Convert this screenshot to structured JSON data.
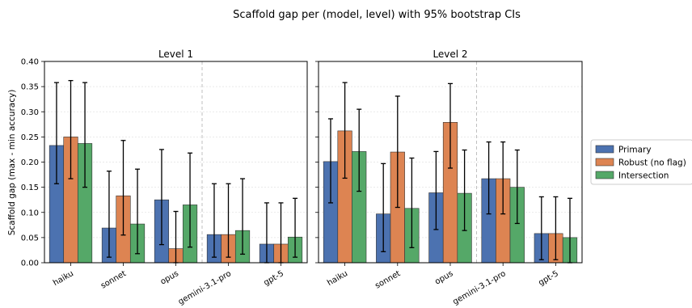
{
  "figure": {
    "suptitle": "Scaffold gap per (model, level) with 95% bootstrap CIs",
    "ylabel": "Scaffold gap (max - min accuracy)"
  },
  "legend": {
    "placement": "right",
    "items": [
      {
        "label": "Primary",
        "color": "#4c72b0"
      },
      {
        "label": "Robust (no flag)",
        "color": "#dd8452"
      },
      {
        "label": "Intersection",
        "color": "#55a868"
      }
    ]
  },
  "chart_data": [
    {
      "type": "bar",
      "title": "Level 1",
      "categories": [
        "haiku",
        "sonnet",
        "opus",
        "gemini-3.1-pro",
        "gpt-5"
      ],
      "ylim": [
        0,
        0.4
      ],
      "yticks": [
        "0.00",
        "0.05",
        "0.10",
        "0.15",
        "0.20",
        "0.25",
        "0.30",
        "0.35",
        "0.40"
      ],
      "grid": "y",
      "divider_after_category": 2,
      "series": [
        {
          "name": "Primary",
          "color": "#4c72b0",
          "values": [
            0.233,
            0.069,
            0.125,
            0.056,
            0.037
          ],
          "ci_low": [
            0.157,
            0.011,
            0.036,
            0.011,
            0.0
          ],
          "ci_high": [
            0.358,
            0.182,
            0.225,
            0.157,
            0.119
          ]
        },
        {
          "name": "Robust (no flag)",
          "color": "#dd8452",
          "values": [
            0.25,
            0.133,
            0.028,
            0.056,
            0.037
          ],
          "ci_low": [
            0.167,
            0.055,
            0.0,
            0.011,
            0.0
          ],
          "ci_high": [
            0.362,
            0.243,
            0.102,
            0.157,
            0.119
          ]
        },
        {
          "name": "Intersection",
          "color": "#55a868",
          "values": [
            0.237,
            0.077,
            0.115,
            0.064,
            0.051
          ],
          "ci_low": [
            0.15,
            0.018,
            0.031,
            0.017,
            0.011
          ],
          "ci_high": [
            0.358,
            0.186,
            0.218,
            0.167,
            0.128
          ]
        }
      ]
    },
    {
      "type": "bar",
      "title": "Level 2",
      "categories": [
        "haiku",
        "sonnet",
        "opus",
        "gemini-3.1-pro",
        "gpt-5"
      ],
      "ylim": [
        0,
        0.4
      ],
      "grid": "y",
      "divider_after_category": 2,
      "series": [
        {
          "name": "Primary",
          "color": "#4c72b0",
          "values": [
            0.201,
            0.097,
            0.139,
            0.167,
            0.058
          ],
          "ci_low": [
            0.119,
            0.022,
            0.066,
            0.097,
            0.006
          ],
          "ci_high": [
            0.286,
            0.197,
            0.221,
            0.24,
            0.131
          ]
        },
        {
          "name": "Robust (no flag)",
          "color": "#dd8452",
          "values": [
            0.262,
            0.22,
            0.279,
            0.167,
            0.058
          ],
          "ci_low": [
            0.168,
            0.11,
            0.188,
            0.097,
            0.006
          ],
          "ci_high": [
            0.358,
            0.331,
            0.356,
            0.24,
            0.131
          ]
        },
        {
          "name": "Intersection",
          "color": "#55a868",
          "values": [
            0.221,
            0.108,
            0.138,
            0.15,
            0.05
          ],
          "ci_low": [
            0.142,
            0.03,
            0.064,
            0.078,
            0.0
          ],
          "ci_high": [
            0.305,
            0.208,
            0.224,
            0.224,
            0.128
          ]
        }
      ]
    }
  ]
}
